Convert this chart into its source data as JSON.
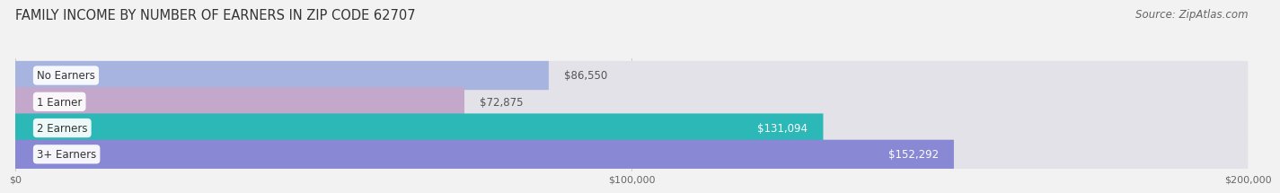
{
  "title": "FAMILY INCOME BY NUMBER OF EARNERS IN ZIP CODE 62707",
  "source": "Source: ZipAtlas.com",
  "categories": [
    "No Earners",
    "1 Earner",
    "2 Earners",
    "3+ Earners"
  ],
  "values": [
    86550,
    72875,
    131094,
    152292
  ],
  "bar_colors": [
    "#a8b4e0",
    "#c4a8cc",
    "#2db8b8",
    "#8888d4"
  ],
  "label_colors": [
    "#555555",
    "#555555",
    "#ffffff",
    "#ffffff"
  ],
  "xlim": [
    0,
    200000
  ],
  "xticks": [
    0,
    100000,
    200000
  ],
  "xtick_labels": [
    "$0",
    "$100,000",
    "$200,000"
  ],
  "background_color": "#f2f2f2",
  "bar_bg_color": "#e2e2e8",
  "title_fontsize": 10.5,
  "source_fontsize": 8.5,
  "bar_height": 0.58,
  "label_fontsize": 8.5,
  "category_fontsize": 8.5
}
